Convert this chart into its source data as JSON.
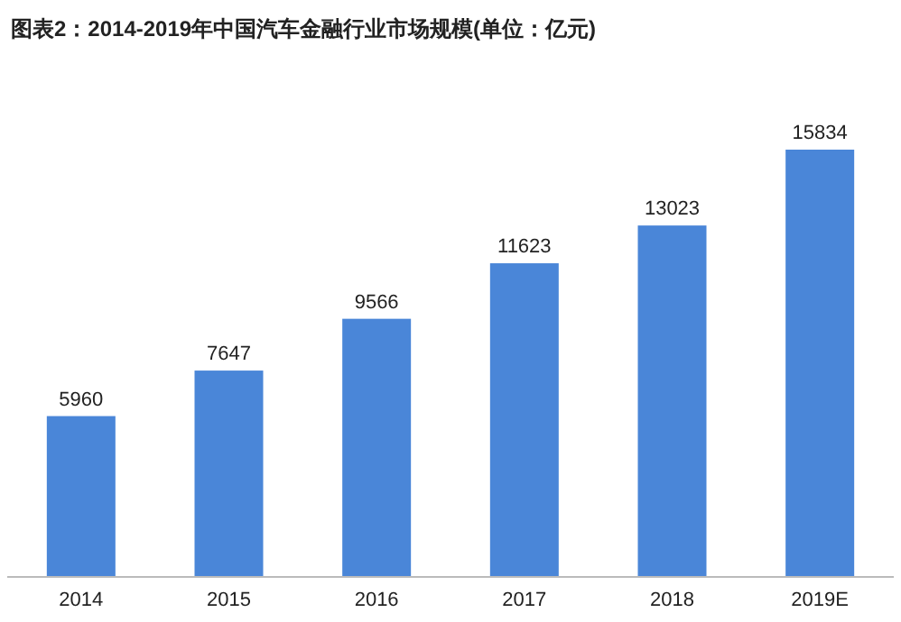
{
  "chart_data": {
    "type": "bar",
    "title": "图表2：2014-2019年中国汽车金融行业市场规模(单位：亿元)",
    "categories": [
      "2014",
      "2015",
      "2016",
      "2017",
      "2018",
      "2019E"
    ],
    "values": [
      5960,
      7647,
      9566,
      11623,
      13023,
      15834
    ],
    "color": "#4a86d8",
    "data_labels": true
  }
}
